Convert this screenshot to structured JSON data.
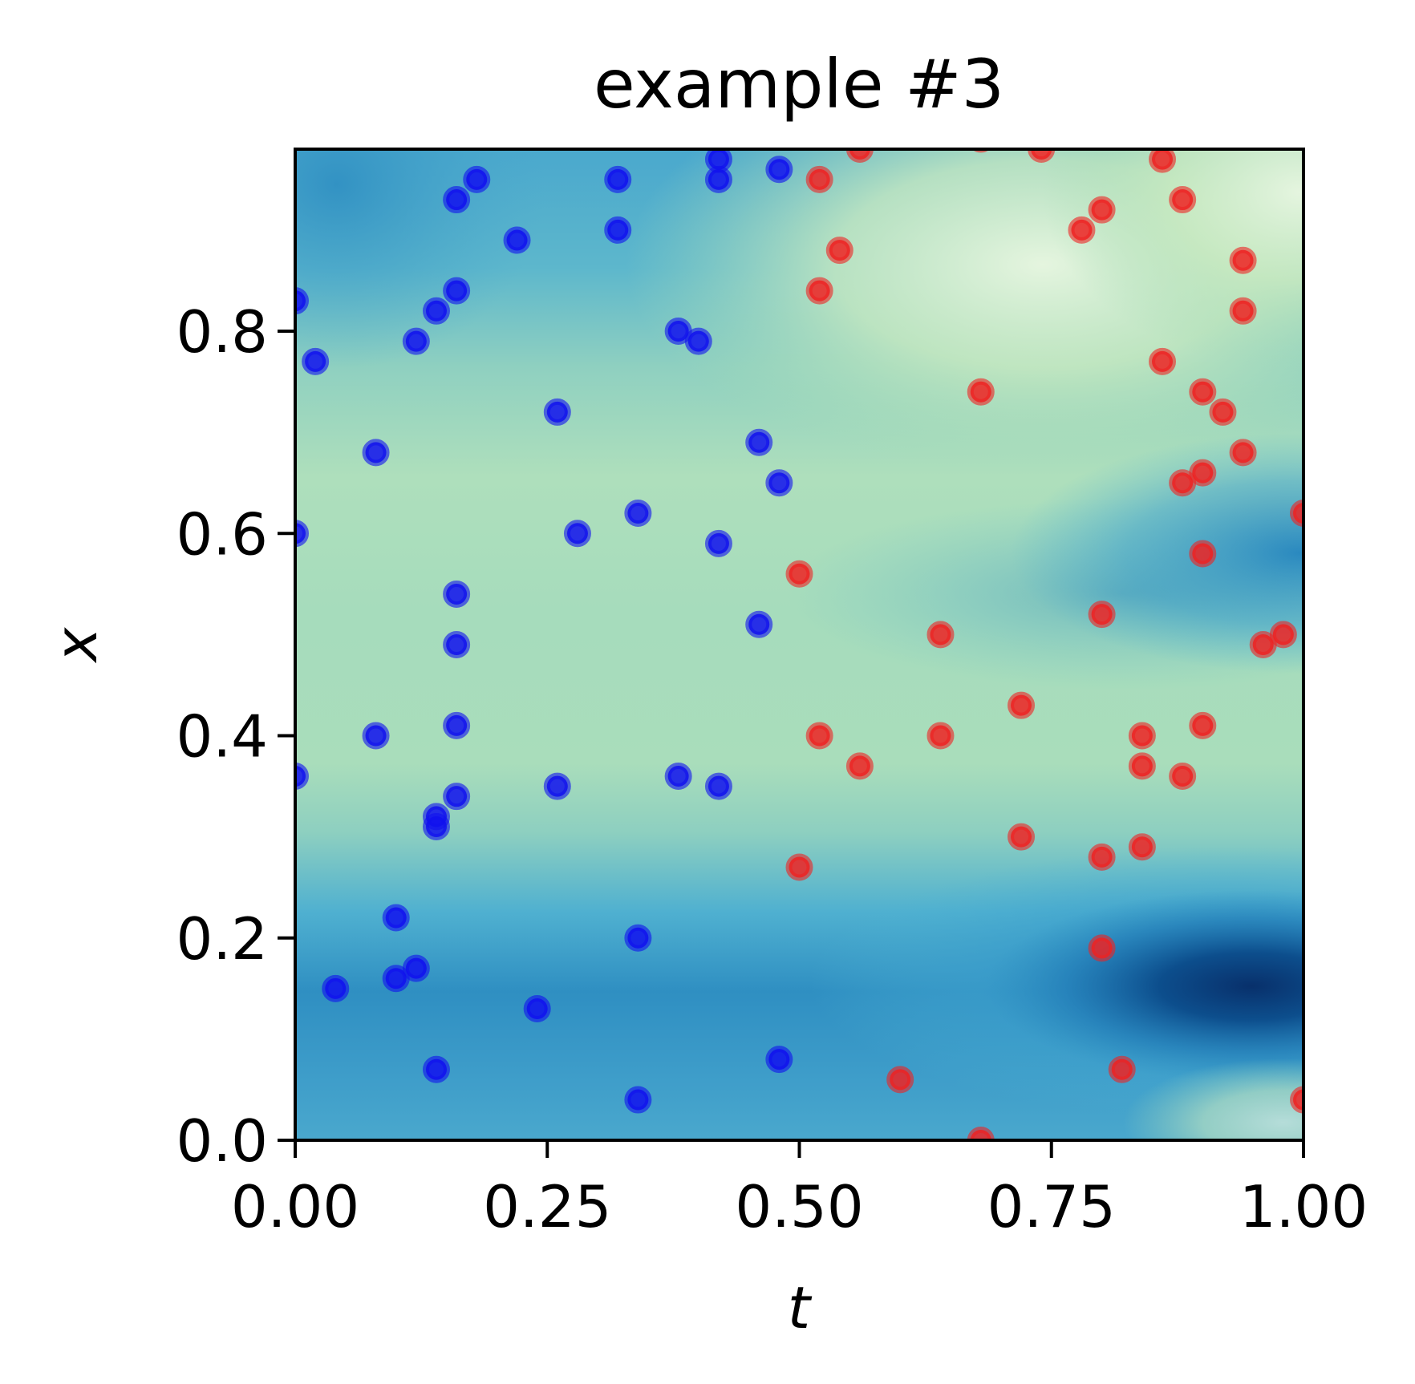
{
  "chart_data": {
    "type": "scatter",
    "title": "example #3",
    "xlabel": "t",
    "ylabel": "x",
    "xlim": [
      0,
      1
    ],
    "ylim": [
      0,
      0.98
    ],
    "x_ticks": [
      0,
      0.25,
      0.5,
      0.75,
      1
    ],
    "x_tick_labels": [
      "0.00",
      "0.25",
      "0.50",
      "0.75",
      "1.00"
    ],
    "y_ticks": [
      0,
      0.2,
      0.4,
      0.6,
      0.8
    ],
    "y_tick_labels": [
      "0.0",
      "0.2",
      "0.4",
      "0.6",
      "0.8"
    ],
    "grid": false,
    "background": "heatmap (blue-green colormap)",
    "colors": {
      "blue_points": "#1111ee",
      "red_points": "#ee2222"
    },
    "series": [
      {
        "color": "blue",
        "points": [
          [
            0.0,
            0.83
          ],
          [
            0.02,
            0.77
          ],
          [
            0.12,
            0.79
          ],
          [
            0.14,
            0.82
          ],
          [
            0.16,
            0.84
          ],
          [
            0.16,
            0.93
          ],
          [
            0.18,
            0.95
          ],
          [
            0.22,
            0.89
          ],
          [
            0.32,
            0.95
          ],
          [
            0.32,
            0.9
          ],
          [
            0.42,
            0.97
          ],
          [
            0.42,
            0.95
          ],
          [
            0.48,
            0.96
          ],
          [
            0.38,
            0.8
          ],
          [
            0.4,
            0.79
          ],
          [
            0.08,
            0.68
          ],
          [
            0.26,
            0.72
          ],
          [
            0.46,
            0.69
          ],
          [
            0.48,
            0.65
          ],
          [
            0.0,
            0.6
          ],
          [
            0.28,
            0.6
          ],
          [
            0.34,
            0.62
          ],
          [
            0.42,
            0.59
          ],
          [
            0.16,
            0.54
          ],
          [
            0.16,
            0.49
          ],
          [
            0.46,
            0.51
          ],
          [
            0.08,
            0.4
          ],
          [
            0.16,
            0.41
          ],
          [
            0.0,
            0.36
          ],
          [
            0.16,
            0.34
          ],
          [
            0.14,
            0.32
          ],
          [
            0.14,
            0.31
          ],
          [
            0.26,
            0.35
          ],
          [
            0.38,
            0.36
          ],
          [
            0.42,
            0.35
          ],
          [
            0.1,
            0.22
          ],
          [
            0.34,
            0.2
          ],
          [
            0.04,
            0.15
          ],
          [
            0.1,
            0.16
          ],
          [
            0.12,
            0.17
          ],
          [
            0.24,
            0.13
          ],
          [
            0.14,
            0.07
          ],
          [
            0.48,
            0.08
          ],
          [
            0.34,
            0.04
          ]
        ]
      },
      {
        "color": "red",
        "points": [
          [
            0.52,
            0.95
          ],
          [
            0.56,
            0.98
          ],
          [
            0.68,
            0.99
          ],
          [
            0.74,
            0.98
          ],
          [
            0.86,
            0.97
          ],
          [
            0.88,
            0.93
          ],
          [
            0.8,
            0.92
          ],
          [
            0.78,
            0.9
          ],
          [
            0.54,
            0.88
          ],
          [
            0.52,
            0.84
          ],
          [
            0.94,
            0.87
          ],
          [
            0.94,
            0.82
          ],
          [
            0.86,
            0.77
          ],
          [
            0.68,
            0.74
          ],
          [
            0.9,
            0.74
          ],
          [
            0.92,
            0.72
          ],
          [
            0.94,
            0.68
          ],
          [
            0.9,
            0.66
          ],
          [
            0.88,
            0.65
          ],
          [
            1.0,
            0.62
          ],
          [
            0.9,
            0.58
          ],
          [
            0.5,
            0.56
          ],
          [
            0.8,
            0.52
          ],
          [
            0.64,
            0.5
          ],
          [
            0.96,
            0.49
          ],
          [
            0.98,
            0.5
          ],
          [
            0.72,
            0.43
          ],
          [
            0.52,
            0.4
          ],
          [
            0.64,
            0.4
          ],
          [
            0.84,
            0.4
          ],
          [
            0.9,
            0.41
          ],
          [
            0.56,
            0.37
          ],
          [
            0.84,
            0.37
          ],
          [
            0.88,
            0.36
          ],
          [
            0.72,
            0.3
          ],
          [
            0.84,
            0.29
          ],
          [
            0.8,
            0.28
          ],
          [
            0.5,
            0.27
          ],
          [
            0.8,
            0.19
          ],
          [
            0.82,
            0.07
          ],
          [
            0.6,
            0.06
          ],
          [
            0.68,
            0.0
          ],
          [
            1.0,
            0.04
          ]
        ]
      }
    ]
  }
}
